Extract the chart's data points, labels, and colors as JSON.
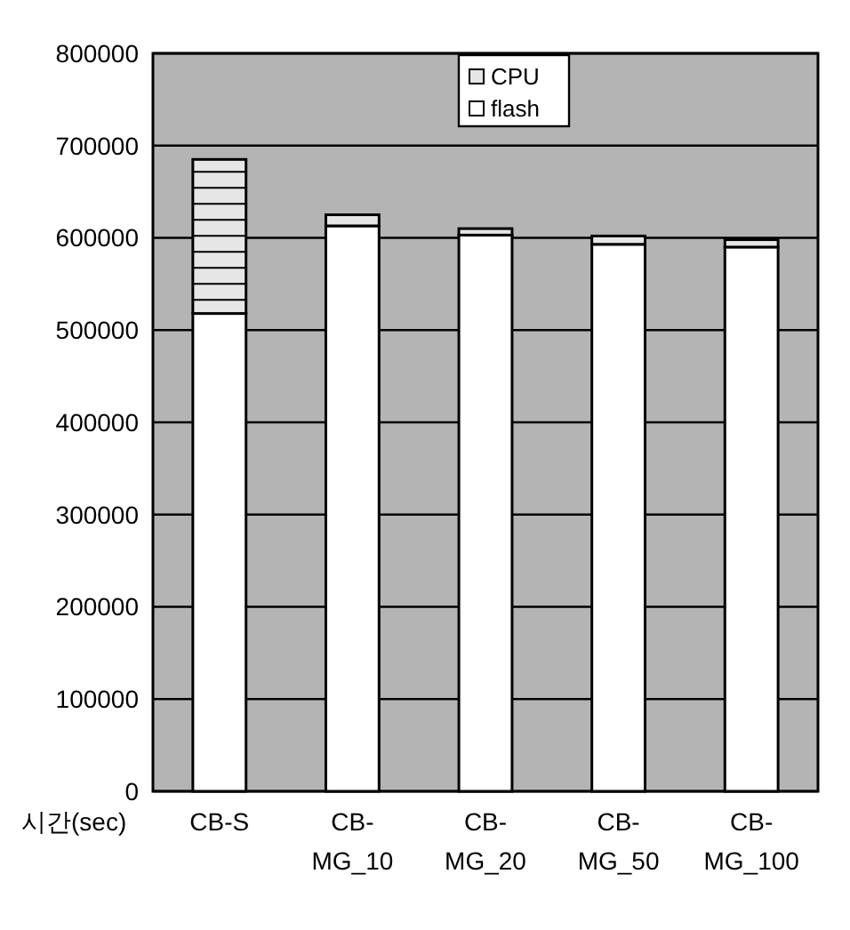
{
  "chart_data": {
    "type": "bar",
    "stacked": true,
    "ylabel": "시간(sec)",
    "categories": [
      "CB-S",
      "CB-MG_10",
      "CB-MG_20",
      "CB-MG_50",
      "CB-MG_100"
    ],
    "series": [
      {
        "name": "flash",
        "color": "#ffffff",
        "values": [
          518000,
          613000,
          603000,
          593000,
          590000
        ]
      },
      {
        "name": "CPU",
        "color": "#e6e6e6",
        "values": [
          167000,
          12000,
          7000,
          9000,
          8000
        ]
      }
    ],
    "ylim": [
      0,
      800000
    ],
    "yticks": [
      0,
      100000,
      200000,
      300000,
      400000,
      500000,
      600000,
      700000,
      800000
    ],
    "grid": "y",
    "legend": "top"
  }
}
